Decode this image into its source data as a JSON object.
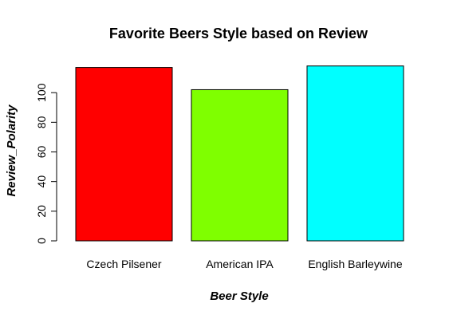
{
  "chart_data": {
    "type": "bar",
    "title": "Favorite Beers Style based on Review",
    "xlabel": "Beer Style",
    "ylabel": "Review_Polarity",
    "categories": [
      "Czech Pilsener",
      "American IPA",
      "English Barleywine"
    ],
    "values": [
      117,
      102,
      118
    ],
    "colors": [
      "#ff0000",
      "#7fff00",
      "#00ffff"
    ],
    "ylim": [
      0,
      127
    ],
    "yticks": [
      0,
      20,
      40,
      60,
      80,
      100
    ],
    "grid": false,
    "legend": "none"
  }
}
